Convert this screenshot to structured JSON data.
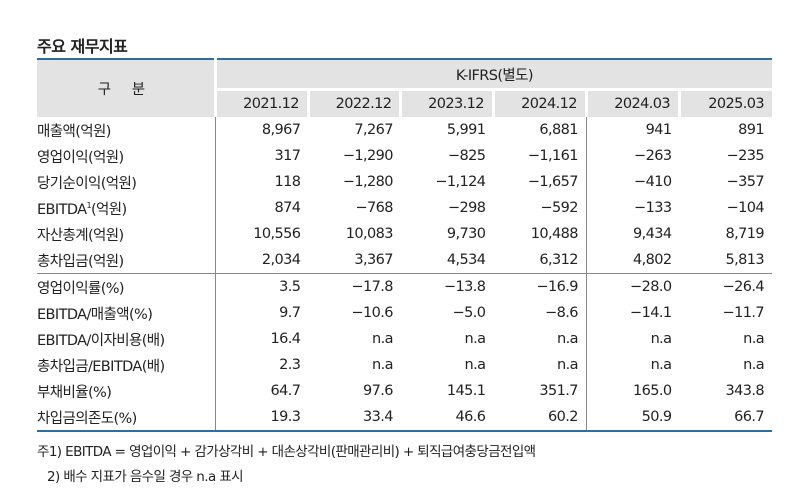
{
  "title": "주요 재무지표",
  "header": {
    "label": "구 분",
    "group": "K-IFRS(별도)",
    "periods": [
      "2021.12",
      "2022.12",
      "2023.12",
      "2024.12",
      "2024.03",
      "2025.03"
    ]
  },
  "rows": [
    {
      "label": "매출액(억원)",
      "values": [
        "8,967",
        "7,267",
        "5,991",
        "6,881",
        "941",
        "891"
      ]
    },
    {
      "label": "영업이익(억원)",
      "values": [
        "317",
        "−1,290",
        "−825",
        "−1,161",
        "−263",
        "−235"
      ]
    },
    {
      "label": "당기순이익(억원)",
      "values": [
        "118",
        "−1,280",
        "−1,124",
        "−1,657",
        "−410",
        "−357"
      ]
    },
    {
      "label": "EBITDA",
      "sup": "1",
      "label_suffix": "(억원)",
      "values": [
        "874",
        "−768",
        "−298",
        "−592",
        "−133",
        "−104"
      ]
    },
    {
      "label": "자산총계(억원)",
      "values": [
        "10,556",
        "10,083",
        "9,730",
        "10,488",
        "9,434",
        "8,719"
      ]
    },
    {
      "label": "총차입금(억원)",
      "values": [
        "2,034",
        "3,367",
        "4,534",
        "6,312",
        "4,802",
        "5,813"
      ]
    },
    {
      "label": "영업이익률(%)",
      "values": [
        "3.5",
        "−17.8",
        "−13.8",
        "−16.9",
        "−28.0",
        "−26.4"
      ]
    },
    {
      "label": "EBITDA/매출액(%)",
      "values": [
        "9.7",
        "−10.6",
        "−5.0",
        "−8.6",
        "−14.1",
        "−11.7"
      ]
    },
    {
      "label": "EBITDA/이자비용(배)",
      "values": [
        "16.4",
        "n.a",
        "n.a",
        "n.a",
        "n.a",
        "n.a"
      ]
    },
    {
      "label": "총차입금/EBITDA(배)",
      "values": [
        "2.3",
        "n.a",
        "n.a",
        "n.a",
        "n.a",
        "n.a"
      ]
    },
    {
      "label": "부채비율(%)",
      "values": [
        "64.7",
        "97.6",
        "145.1",
        "351.7",
        "165.0",
        "343.8"
      ]
    },
    {
      "label": "차입금의존도(%)",
      "values": [
        "19.3",
        "33.4",
        "46.6",
        "60.2",
        "50.9",
        "66.7"
      ]
    }
  ],
  "notes": [
    "주1) EBITDA = 영업이익 + 감가상각비 + 대손상각비(판매관리비) + 퇴직급여충당금전입액",
    "2) 배수 지표가 음수일 경우 n.a 표시"
  ]
}
